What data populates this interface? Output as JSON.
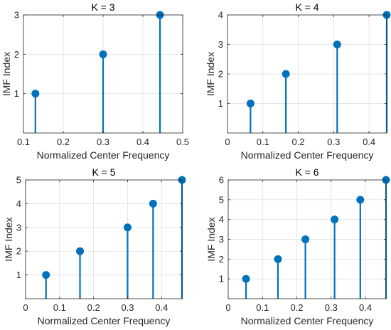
{
  "figure": {
    "bg": "#ffffff"
  },
  "colors": {
    "stem": "#0072BD",
    "grid": "#dcdcdc",
    "axis": "#262626"
  },
  "chart_data": [
    {
      "type": "stem",
      "title": "K = 3",
      "xlabel": "Normalized Center Frequency",
      "ylabel": "IMF Index",
      "xlim": [
        0.1,
        0.5
      ],
      "ylim": [
        0,
        3
      ],
      "xticks": [
        0.1,
        0.2,
        0.3,
        0.4,
        0.5
      ],
      "xtick_labels": [
        "0.1",
        "0.2",
        "0.3",
        "0.4",
        "0.5"
      ],
      "yticks": [
        1,
        2,
        3
      ],
      "ytick_labels": [
        "1",
        "2",
        "3"
      ],
      "grid": true,
      "points": [
        {
          "x": 0.13,
          "y": 1
        },
        {
          "x": 0.3,
          "y": 2
        },
        {
          "x": 0.443,
          "y": 3
        }
      ]
    },
    {
      "type": "stem",
      "title": "K = 4",
      "xlabel": "Normalized Center Frequency",
      "ylabel": "IMF Index",
      "xlim": [
        0,
        0.45
      ],
      "ylim": [
        0,
        4
      ],
      "xticks": [
        0,
        0.1,
        0.2,
        0.3,
        0.4
      ],
      "xtick_labels": [
        "0",
        "0.1",
        "0.2",
        "0.3",
        "0.4"
      ],
      "yticks": [
        1,
        2,
        3,
        4
      ],
      "ytick_labels": [
        "1",
        "2",
        "3",
        "4"
      ],
      "grid": true,
      "points": [
        {
          "x": 0.065,
          "y": 1
        },
        {
          "x": 0.165,
          "y": 2
        },
        {
          "x": 0.31,
          "y": 3
        },
        {
          "x": 0.45,
          "y": 4
        }
      ]
    },
    {
      "type": "stem",
      "title": "K = 5",
      "xlabel": "Normalized Center Frequency",
      "ylabel": "IMF Index",
      "xlim": [
        0,
        0.46
      ],
      "ylim": [
        0,
        5
      ],
      "xticks": [
        0,
        0.1,
        0.2,
        0.3,
        0.4
      ],
      "xtick_labels": [
        "0",
        "0.1",
        "0.2",
        "0.3",
        "0.4"
      ],
      "yticks": [
        1,
        2,
        3,
        4,
        5
      ],
      "ytick_labels": [
        "1",
        "2",
        "3",
        "4",
        "5"
      ],
      "grid": true,
      "points": [
        {
          "x": 0.06,
          "y": 1
        },
        {
          "x": 0.16,
          "y": 2
        },
        {
          "x": 0.3,
          "y": 3
        },
        {
          "x": 0.375,
          "y": 4
        },
        {
          "x": 0.46,
          "y": 5
        }
      ]
    },
    {
      "type": "stem",
      "title": "K = 6",
      "xlabel": "Normalized Center Frequency",
      "ylabel": "IMF Index",
      "xlim": [
        0,
        0.46
      ],
      "ylim": [
        0,
        6
      ],
      "xticks": [
        0,
        0.1,
        0.2,
        0.3,
        0.4
      ],
      "xtick_labels": [
        "0",
        "0.1",
        "0.2",
        "0.3",
        "0.4"
      ],
      "yticks": [
        1,
        2,
        3,
        4,
        5,
        6
      ],
      "ytick_labels": [
        "1",
        "2",
        "3",
        "4",
        "5",
        "6"
      ],
      "grid": true,
      "points": [
        {
          "x": 0.052,
          "y": 1
        },
        {
          "x": 0.145,
          "y": 2
        },
        {
          "x": 0.225,
          "y": 3
        },
        {
          "x": 0.31,
          "y": 4
        },
        {
          "x": 0.385,
          "y": 5
        },
        {
          "x": 0.46,
          "y": 6
        }
      ]
    }
  ]
}
